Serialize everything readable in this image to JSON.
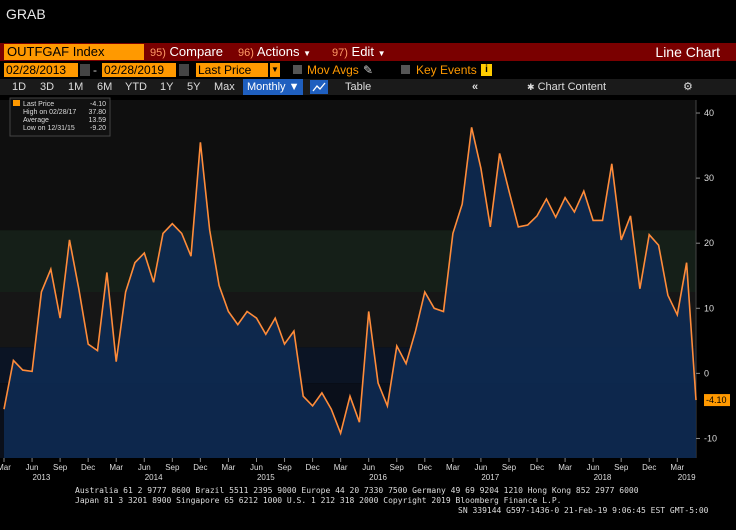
{
  "header": {
    "title": "GRAB"
  },
  "toolbar": {
    "ticker": "OUTFGAF Index",
    "compare_num": "95)",
    "compare": "Compare",
    "actions_num": "96)",
    "actions": "Actions",
    "edit_num": "97)",
    "edit": "Edit",
    "chart_kind": "Line Chart"
  },
  "range": {
    "start": "02/28/2013",
    "end": "02/28/2019",
    "field": "Last Price",
    "mov_avgs": "Mov Avgs",
    "key_events": "Key Events"
  },
  "periods": {
    "items": [
      "1D",
      "3D",
      "1M",
      "6M",
      "YTD",
      "1Y",
      "5Y",
      "Max"
    ],
    "selected": "Monthly",
    "table": "Table",
    "content": "Chart Content"
  },
  "legend": {
    "last_label": "Last Price",
    "last_val": "-4.10",
    "high_label": "High on 02/28/17",
    "high_val": "37.80",
    "avg_label": "Average",
    "avg_val": "13.59",
    "low_label": "Low on 12/31/15",
    "low_val": "-9.20"
  },
  "footer": {
    "line1": "Australia 61 2 9777 8600 Brazil 5511 2395 9000 Europe 44 20 7330 7500 Germany 49 69 9204 1210 Hong Kong 852 2977 6000",
    "line2": "Japan 81 3 3201 8900        Singapore 65 6212 1000        U.S. 1 212 318 2000              Copyright 2019 Bloomberg Finance L.P.",
    "line3": "SN 339144 G597-1436-0 21-Feb-19  9:06:45 EST  GMT-5:00"
  },
  "colors": {
    "line": "#ff8c3a",
    "fill": "#0d2a52",
    "accent": "#ff9900"
  },
  "chart_data": {
    "type": "area",
    "ylim": [
      -13,
      42
    ],
    "yticks": [
      -10,
      0,
      10,
      20,
      30,
      40
    ],
    "last_label": "-4.10",
    "x_month_labels": [
      "Mar",
      "Jun",
      "Sep",
      "Dec",
      "Mar",
      "Jun",
      "Sep",
      "Dec",
      "Mar",
      "Jun",
      "Sep",
      "Dec",
      "Mar",
      "Jun",
      "Sep",
      "Dec",
      "Mar",
      "Jun",
      "Sep",
      "Dec",
      "Mar",
      "Jun",
      "Sep",
      "Dec",
      "Mar"
    ],
    "x_year_labels": [
      "2013",
      "2014",
      "2015",
      "2016",
      "2017",
      "2018",
      "2019"
    ],
    "series": [
      {
        "values": [
          -5.5,
          2,
          0.5,
          0.3,
          12.5,
          16,
          8.5,
          20.5,
          13,
          4.5,
          3.5,
          15.5,
          1.8,
          12.5,
          17,
          18.5,
          14,
          21.5,
          23,
          21.5,
          18,
          35.5,
          22,
          13.5,
          9.5,
          7.5,
          9.5,
          8.5,
          6,
          8.5,
          4.5,
          6.5,
          -3.5,
          -5,
          -3,
          -5.5,
          -9.2,
          -3.5,
          -7.5,
          9.5,
          -1.5,
          -5,
          4.2,
          1.5,
          6.5,
          12.5,
          10,
          9.5,
          21.5,
          26,
          37.8,
          31.5,
          22.5,
          33.8,
          28,
          22.5,
          22.8,
          24.2,
          26.8,
          24,
          27,
          24.8,
          28,
          23.5,
          23.5,
          32.2,
          20.5,
          24.2,
          13,
          21.3,
          19.7,
          12,
          9,
          17,
          -4.1
        ]
      }
    ]
  }
}
